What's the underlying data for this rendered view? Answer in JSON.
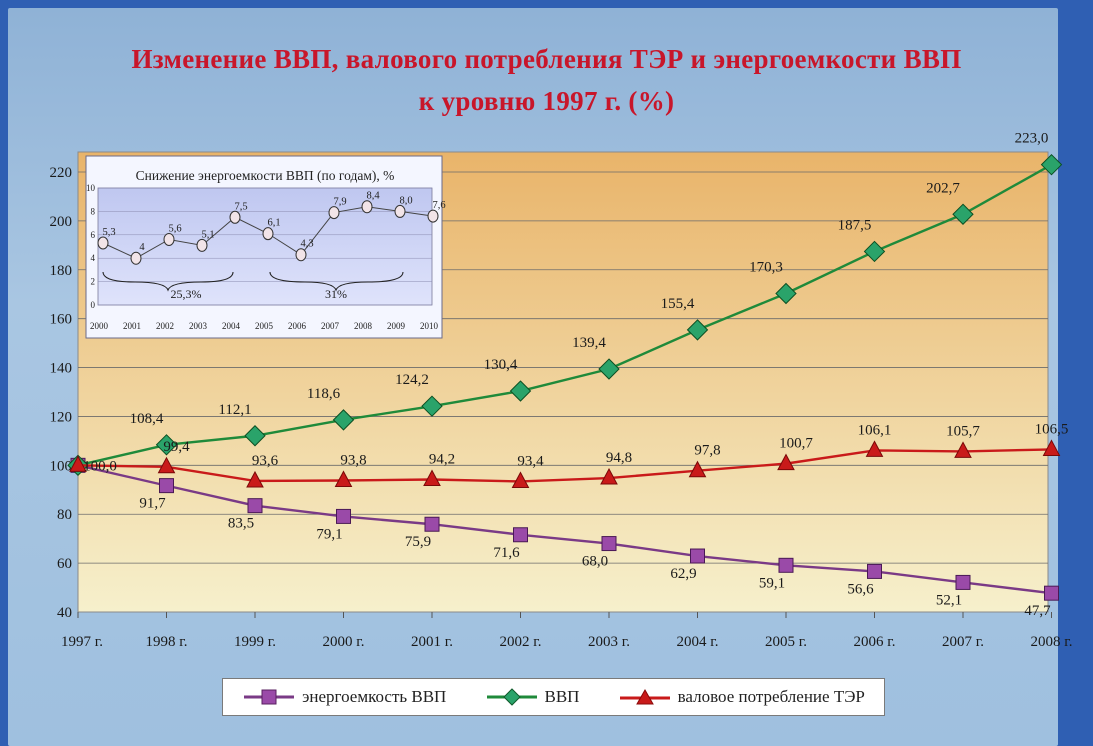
{
  "title_line1": "Изменение ВВП, валового потребления ТЭР и энергоемкости ВВП",
  "title_line2": "к уровню 1997 г. (%)",
  "colors": {
    "gdp": "#1f8a3a",
    "gdp_marker": "#2aa36a",
    "energy": "#c91a1a",
    "intensity": "#7a3a86",
    "intensity_marker": "#9a4aa8",
    "plot_top": "#e9b46a",
    "plot_bottom": "#f6f0cc"
  },
  "chart_data": [
    {
      "type": "line",
      "title": "Изменение ВВП, валового потребления ТЭР и энергоемкости ВВП к уровню 1997 г. (%)",
      "categories": [
        "1997 г.",
        "1998 г.",
        "1999 г.",
        "2000 г.",
        "2001 г.",
        "2002 г.",
        "2003 г.",
        "2004 г.",
        "2005 г.",
        "2006 г.",
        "2007 г.",
        "2008 г."
      ],
      "ylim": [
        40,
        220
      ],
      "yticks": [
        "40",
        "60",
        "80",
        "100",
        "120",
        "140",
        "160",
        "180",
        "200",
        "220"
      ],
      "grid": true,
      "legend_position": "bottom",
      "series": [
        {
          "name": "энергоемкость ВВП",
          "marker": "square",
          "values": [
            100,
            91.7,
            83.5,
            79.1,
            75.9,
            71.6,
            68.0,
            62.9,
            59.1,
            56.6,
            52.1,
            47.7
          ],
          "labels": [
            "",
            "91,7",
            "83,5",
            "79,1",
            "75,9",
            "71,6",
            "68,0",
            "62,9",
            "59,1",
            "56,6",
            "52,1",
            "47,7"
          ]
        },
        {
          "name": "ВВП",
          "marker": "diamond",
          "values": [
            100,
            108.4,
            112.1,
            118.6,
            124.2,
            130.4,
            139.4,
            155.4,
            170.3,
            187.5,
            202.7,
            223.0
          ],
          "labels": [
            "",
            "108,4",
            "112,1",
            "118,6",
            "124,2",
            "130,4",
            "139,4",
            "155,4",
            "170,3",
            "187,5",
            "202,7",
            "223,0"
          ]
        },
        {
          "name": "валовое потребление ТЭР",
          "marker": "triangle",
          "values": [
            100,
            99.4,
            93.6,
            93.8,
            94.2,
            93.4,
            94.8,
            97.8,
            100.7,
            106.1,
            105.7,
            106.5
          ],
          "labels": [
            "100,0",
            "99,4",
            "93,6",
            "93,8",
            "94,2",
            "93,4",
            "94,8",
            "97,8",
            "100,7",
            "106,1",
            "105,7",
            "106,5"
          ]
        }
      ]
    },
    {
      "type": "line",
      "title": "Снижение энергоемкости  ВВП (по годам), %",
      "categories": [
        "2000",
        "2001",
        "2002",
        "2003",
        "2004",
        "2005",
        "2006",
        "2007",
        "2008",
        "2009",
        "2010"
      ],
      "ylim": [
        0,
        10
      ],
      "yticks": [
        "0",
        "2",
        "4",
        "6",
        "8",
        "10"
      ],
      "grid": true,
      "values": [
        5.3,
        4.0,
        5.6,
        5.1,
        7.5,
        6.1,
        4.3,
        7.9,
        8.4,
        8.0,
        7.6
      ],
      "labels": [
        "5,3",
        "4",
        "5,6",
        "5,1",
        "7,5",
        "6,1",
        "4,3",
        "7,9",
        "8,4",
        "8,0",
        "7,6"
      ],
      "annotations": [
        "25,3%",
        "31%"
      ]
    }
  ]
}
